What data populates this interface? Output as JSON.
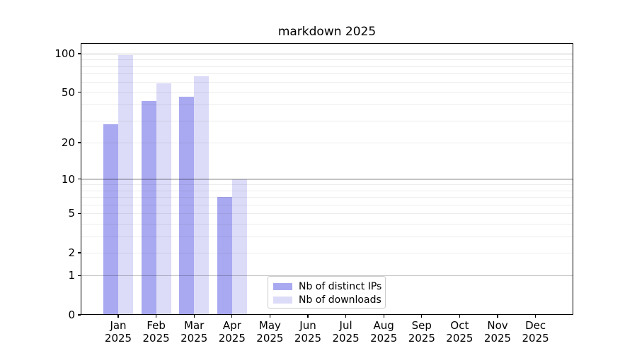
{
  "chart_data": {
    "type": "bar",
    "title": "markdown 2025",
    "x_categories": [
      "Jan",
      "Feb",
      "Mar",
      "Apr",
      "May",
      "Jun",
      "Jul",
      "Aug",
      "Sep",
      "Oct",
      "Nov",
      "Dec"
    ],
    "x_year_label": "2025",
    "series": [
      {
        "name": "Nb of distinct IPs",
        "color": "#a9a9f1",
        "values": [
          28,
          43,
          46,
          7,
          0,
          0,
          0,
          0,
          0,
          0,
          0,
          0
        ]
      },
      {
        "name": "Nb of downloads",
        "color": "#dcdcf8",
        "values": [
          98,
          59,
          67,
          10,
          0,
          0,
          0,
          0,
          0,
          0,
          0,
          0
        ]
      }
    ],
    "y_scale": "log10(1+value)",
    "y_axis_ticks": [
      100,
      50,
      20,
      10,
      5,
      2,
      1,
      0
    ],
    "y_minor_gridlines": [
      2,
      3,
      4,
      5,
      6,
      7,
      8,
      9,
      20,
      30,
      40,
      50,
      60,
      70,
      80,
      90
    ],
    "y_major_gridlines": [
      1,
      10,
      100
    ],
    "y_axis_top_value": 121,
    "grid": true,
    "legend_position": "lower center inside plot",
    "colors": {
      "major_gridline": "rgba(0,0,0,0.235)",
      "minor_gridline": "rgba(0,0,0,0.07)",
      "spine": "#000000",
      "text": "#000000",
      "legend_border": "#cccccc"
    }
  }
}
